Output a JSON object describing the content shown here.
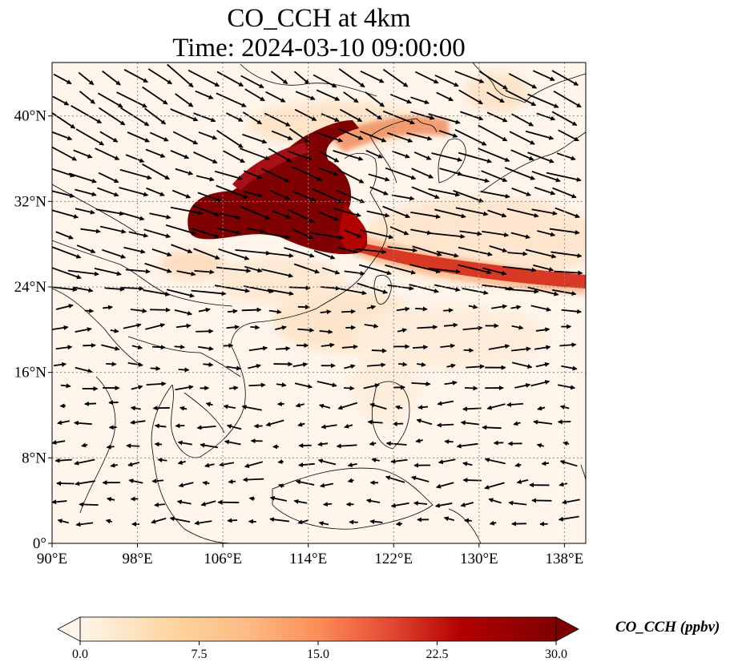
{
  "title": {
    "line1": "CO_CCH at 4km",
    "line2": "Time: 2024-03-10 09:00:00"
  },
  "map": {
    "extent": {
      "lon": [
        90,
        140
      ],
      "lat": [
        0,
        45
      ]
    },
    "grid": "dotted",
    "lat_ticks": [
      {
        "value": 0,
        "label": "0°"
      },
      {
        "value": 8,
        "label": "8°N"
      },
      {
        "value": 16,
        "label": "16°N"
      },
      {
        "value": 24,
        "label": "24°N"
      },
      {
        "value": 32,
        "label": "32°N"
      },
      {
        "value": 40,
        "label": "40°N"
      }
    ],
    "lon_ticks": [
      {
        "value": 90,
        "label": "90°E"
      },
      {
        "value": 98,
        "label": "98°E"
      },
      {
        "value": 106,
        "label": "106°E"
      },
      {
        "value": 114,
        "label": "114°E"
      },
      {
        "value": 122,
        "label": "122°E"
      },
      {
        "value": 130,
        "label": "130°E"
      },
      {
        "value": 138,
        "label": "138°E"
      }
    ]
  },
  "colorbar": {
    "label": "CO_CCH (ppbv)",
    "min": 0,
    "max": 30,
    "ticks": [
      "0.0",
      "7.5",
      "15.0",
      "22.5",
      "30.0"
    ],
    "colors": [
      "#fff5eb",
      "#fdd49e",
      "#fdbb84",
      "#fc8d59",
      "#ef6548",
      "#d7301f",
      "#b30000",
      "#7f0000"
    ]
  }
}
